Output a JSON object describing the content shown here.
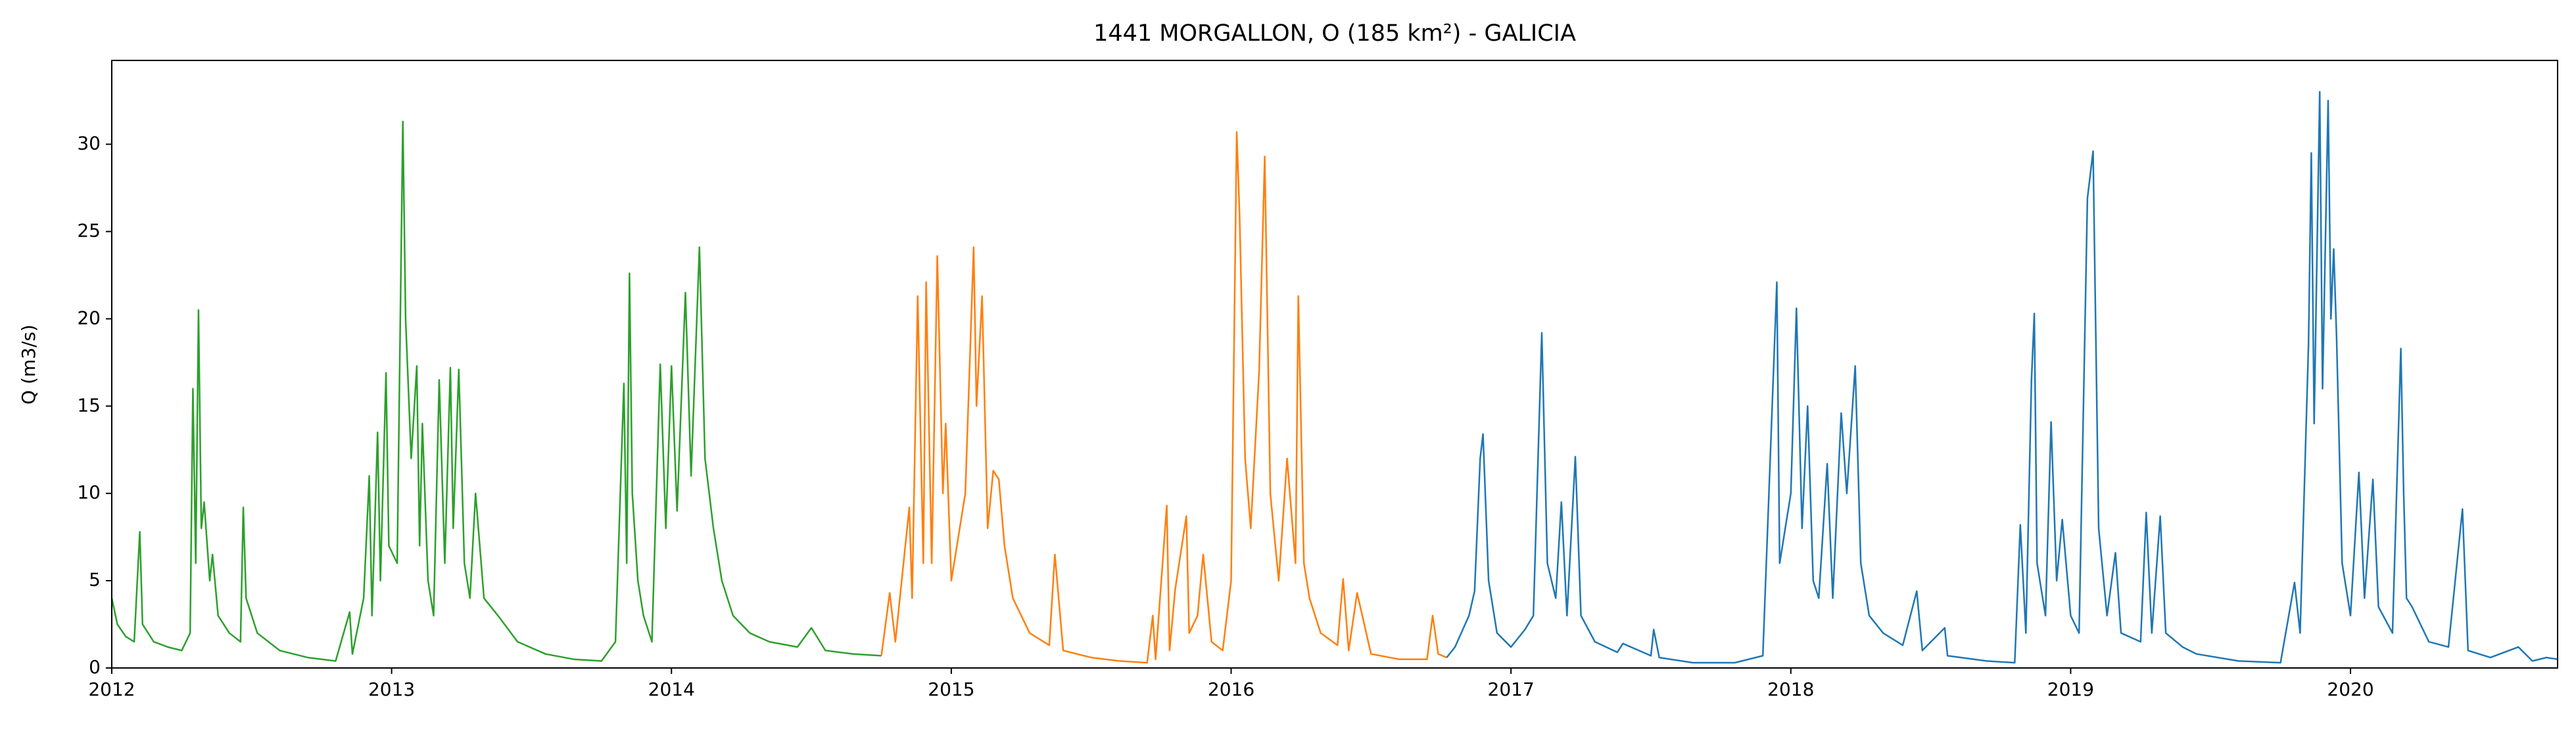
{
  "chart_data": {
    "type": "line",
    "title": "1441 MORGALLON, O (185 km²) - GALICIA",
    "y_label": "Q (m3/s)",
    "xlim": [
      2012,
      2020.74
    ],
    "xticks": [
      2012,
      2013,
      2014,
      2015,
      2016,
      2017,
      2018,
      2019,
      2020
    ],
    "ylim": [
      0,
      34.8
    ],
    "yticks": [
      0,
      5,
      10,
      15,
      20,
      25,
      30
    ],
    "grid": false,
    "series": [
      {
        "color": "#2ca02c",
        "x": [
          2012.0,
          2012.02,
          2012.05,
          2012.08,
          2012.1,
          2012.11,
          2012.15,
          2012.2,
          2012.25,
          2012.28,
          2012.29,
          2012.3,
          2012.31,
          2012.32,
          2012.33,
          2012.35,
          2012.36,
          2012.38,
          2012.42,
          2012.46,
          2012.47,
          2012.48,
          2012.52,
          2012.6,
          2012.7,
          2012.8,
          2012.85,
          2012.86,
          2012.9,
          2012.92,
          2012.93,
          2012.95,
          2012.96,
          2012.98,
          2012.99,
          2013.02,
          2013.04,
          2013.05,
          2013.07,
          2013.09,
          2013.1,
          2013.11,
          2013.13,
          2013.15,
          2013.17,
          2013.19,
          2013.21,
          2013.22,
          2013.24,
          2013.26,
          2013.28,
          2013.3,
          2013.33,
          2013.38,
          2013.45,
          2013.55,
          2013.65,
          2013.75,
          2013.8,
          2013.83,
          2013.84,
          2013.85,
          2013.86,
          2013.88,
          2013.9,
          2013.93,
          2013.96,
          2013.98,
          2014.0,
          2014.02,
          2014.05,
          2014.07,
          2014.1,
          2014.12,
          2014.15,
          2014.18,
          2014.22,
          2014.28,
          2014.35,
          2014.45,
          2014.5,
          2014.55,
          2014.65,
          2014.75
        ],
        "values": [
          4.0,
          2.5,
          1.8,
          1.5,
          7.8,
          2.5,
          1.5,
          1.2,
          1.0,
          2.0,
          16,
          6,
          20.5,
          8,
          9.5,
          5,
          6.5,
          3,
          2,
          1.5,
          9.2,
          4,
          2,
          1,
          0.6,
          0.4,
          3.2,
          0.8,
          4,
          11,
          3,
          13.5,
          5,
          16.9,
          7,
          6,
          31.3,
          20,
          12,
          17.3,
          7,
          14,
          5,
          3,
          16.5,
          6,
          17.2,
          8,
          17.1,
          6,
          4,
          10,
          4,
          3,
          1.5,
          0.8,
          0.5,
          0.4,
          1.5,
          16.3,
          6,
          22.6,
          10,
          5,
          3,
          1.5,
          17.4,
          8,
          17.3,
          9,
          21.5,
          11,
          24.1,
          12,
          8,
          5,
          3,
          2,
          1.5,
          1.2,
          2.3,
          1.0,
          0.8,
          0.7
        ]
      },
      {
        "color": "#ff7f0e",
        "x": [
          2014.75,
          2014.78,
          2014.8,
          2014.85,
          2014.86,
          2014.88,
          2014.9,
          2014.91,
          2014.93,
          2014.95,
          2014.97,
          2014.98,
          2015.0,
          2015.05,
          2015.08,
          2015.09,
          2015.11,
          2015.13,
          2015.15,
          2015.17,
          2015.19,
          2015.22,
          2015.28,
          2015.35,
          2015.37,
          2015.4,
          2015.5,
          2015.6,
          2015.7,
          2015.72,
          2015.73,
          2015.77,
          2015.78,
          2015.8,
          2015.84,
          2015.85,
          2015.88,
          2015.9,
          2015.93,
          2015.97,
          2016.0,
          2016.02,
          2016.03,
          2016.05,
          2016.07,
          2016.1,
          2016.12,
          2016.14,
          2016.17,
          2016.2,
          2016.23,
          2016.24,
          2016.26,
          2016.28,
          2016.32,
          2016.38,
          2016.4,
          2016.42,
          2016.45,
          2016.5,
          2016.6,
          2016.7,
          2016.72,
          2016.74,
          2016.77
        ],
        "values": [
          0.7,
          4.3,
          1.5,
          9.2,
          4,
          21.3,
          6,
          22.1,
          6,
          23.6,
          10,
          14,
          5,
          10,
          24.1,
          15,
          21.3,
          8,
          11.3,
          10.8,
          7,
          4,
          2,
          1.3,
          6.5,
          1.0,
          0.6,
          0.4,
          0.3,
          3.0,
          0.5,
          9.3,
          1.0,
          4.5,
          8.7,
          2,
          3,
          6.5,
          1.5,
          1.0,
          5,
          30.7,
          26,
          12,
          8,
          17,
          29.3,
          10,
          5,
          12,
          6,
          21.3,
          6,
          4,
          2,
          1.3,
          5.1,
          1.0,
          4.3,
          0.8,
          0.5,
          0.5,
          3,
          0.8,
          0.6
        ]
      },
      {
        "color": "#1f77b4",
        "x": [
          2016.77,
          2016.8,
          2016.85,
          2016.87,
          2016.89,
          2016.9,
          2016.92,
          2016.95,
          2017.0,
          2017.05,
          2017.08,
          2017.11,
          2017.13,
          2017.16,
          2017.18,
          2017.2,
          2017.23,
          2017.25,
          2017.3,
          2017.38,
          2017.4,
          2017.5,
          2017.51,
          2017.53,
          2017.65,
          2017.8,
          2017.9,
          2017.95,
          2017.96,
          2018.0,
          2018.02,
          2018.04,
          2018.06,
          2018.08,
          2018.1,
          2018.13,
          2018.15,
          2018.18,
          2018.2,
          2018.23,
          2018.25,
          2018.28,
          2018.33,
          2018.4,
          2018.45,
          2018.47,
          2018.55,
          2018.56,
          2018.7,
          2018.8,
          2018.82,
          2018.84,
          2018.86,
          2018.87,
          2018.88,
          2018.91,
          2018.93,
          2018.95,
          2018.97,
          2019.0,
          2019.03,
          2019.06,
          2019.08,
          2019.1,
          2019.13,
          2019.16,
          2019.18,
          2019.25,
          2019.27,
          2019.29,
          2019.32,
          2019.34,
          2019.4,
          2019.45,
          2019.6,
          2019.75,
          2019.8,
          2019.82,
          2019.85,
          2019.86,
          2019.87,
          2019.89,
          2019.9,
          2019.92,
          2019.93,
          2019.94,
          2019.95,
          2019.97,
          2020.0,
          2020.03,
          2020.05,
          2020.08,
          2020.1,
          2020.15,
          2020.18,
          2020.19,
          2020.2,
          2020.22,
          2020.28,
          2020.35,
          2020.4,
          2020.42,
          2020.5,
          2020.6,
          2020.65,
          2020.7,
          2020.74
        ],
        "values": [
          0.6,
          1.2,
          3,
          4.4,
          12.0,
          13.4,
          5,
          2,
          1.2,
          2.2,
          3.0,
          19.2,
          6,
          4,
          9.5,
          3,
          12.1,
          3,
          1.5,
          0.9,
          1.4,
          0.7,
          2.2,
          0.6,
          0.3,
          0.3,
          0.7,
          22.1,
          6,
          10,
          20.6,
          8,
          15,
          5,
          4,
          11.7,
          4,
          14.6,
          10,
          17.3,
          6,
          3,
          2,
          1.3,
          4.4,
          1,
          2.3,
          0.7,
          0.4,
          0.3,
          8.2,
          2,
          16.5,
          20.3,
          6,
          3,
          14.1,
          5,
          8.5,
          3,
          2,
          26.9,
          29.6,
          8,
          3,
          6.6,
          2,
          1.5,
          8.9,
          2,
          8.7,
          2,
          1.2,
          0.8,
          0.4,
          0.3,
          4.9,
          2,
          18.6,
          29.5,
          14,
          33.0,
          16,
          32.5,
          20,
          24,
          19,
          6,
          3,
          11.2,
          4,
          10.8,
          3.5,
          2,
          18.3,
          10,
          4,
          3.5,
          1.5,
          1.2,
          9.1,
          1.0,
          0.6,
          1.2,
          0.4,
          0.6,
          0.5
        ]
      }
    ]
  }
}
